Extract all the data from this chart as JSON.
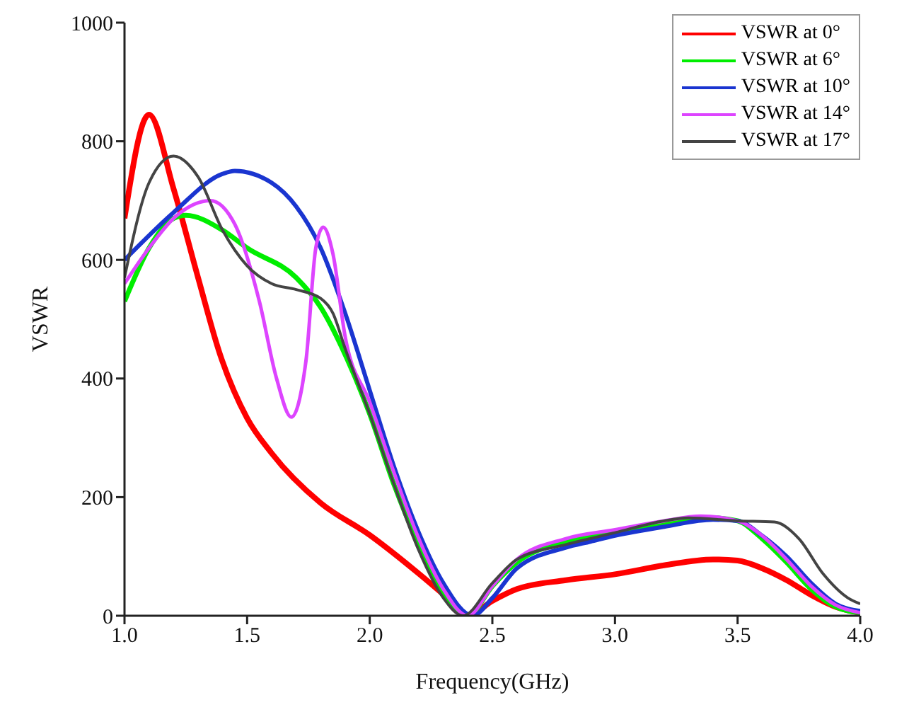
{
  "chart_data": {
    "type": "line",
    "xlabel": "Frequency(GHz)",
    "ylabel": "VSWR",
    "xlim": [
      1.0,
      4.0
    ],
    "ylim": [
      0,
      1000
    ],
    "xticks": [
      {
        "value": 1.0,
        "label": "1.0"
      },
      {
        "value": 1.5,
        "label": "1.5"
      },
      {
        "value": 2.0,
        "label": "2.0"
      },
      {
        "value": 2.5,
        "label": "2.5"
      },
      {
        "value": 3.0,
        "label": "3.0"
      },
      {
        "value": 3.5,
        "label": "3.5"
      },
      {
        "value": 4.0,
        "label": "4.0"
      }
    ],
    "yticks": [
      0,
      200,
      400,
      600,
      800,
      1000
    ],
    "grid": false,
    "legend": "top right",
    "marker": "none",
    "line_style": "solid",
    "series": [
      {
        "name": "VSWR at 0°",
        "color": "#ff0000",
        "x": [
          1.0,
          1.1,
          1.2,
          1.3,
          1.39,
          1.5,
          1.6,
          1.8,
          2.0,
          2.2,
          2.3,
          2.4,
          2.5,
          2.6,
          2.8,
          3.0,
          3.2,
          3.4,
          3.5,
          3.6,
          3.7,
          3.8,
          3.9,
          4.0
        ],
        "values": [
          670,
          845,
          720,
          570,
          440,
          333,
          274,
          190,
          136,
          71,
          36,
          0,
          25,
          45,
          60,
          70,
          85,
          95,
          93,
          80,
          60,
          35,
          15,
          5
        ]
      },
      {
        "name": "VSWR at 6°",
        "color": "#00ee00",
        "x": [
          1.0,
          1.1,
          1.2,
          1.25,
          1.4,
          1.5,
          1.7,
          1.8,
          1.9,
          2.0,
          2.1,
          2.2,
          2.3,
          2.4,
          2.5,
          2.6,
          2.8,
          3.0,
          3.2,
          3.4,
          3.5,
          3.6,
          3.7,
          3.8,
          3.9,
          4.0
        ],
        "values": [
          530,
          620,
          670,
          675,
          650,
          620,
          570,
          520,
          440,
          340,
          220,
          120,
          40,
          0,
          50,
          90,
          125,
          140,
          155,
          165,
          160,
          130,
          90,
          45,
          15,
          5
        ]
      },
      {
        "name": "VSWR at 10°",
        "color": "#1a35d0",
        "x": [
          1.0,
          1.2,
          1.4,
          1.45,
          1.6,
          1.7,
          1.8,
          1.9,
          2.0,
          2.1,
          2.2,
          2.3,
          2.42,
          2.5,
          2.6,
          2.8,
          2.9,
          3.0,
          3.2,
          3.4,
          3.5,
          3.6,
          3.7,
          3.8,
          3.9,
          4.0
        ],
        "values": [
          600,
          680,
          745,
          750,
          730,
          690,
          620,
          510,
          380,
          250,
          140,
          55,
          0,
          30,
          80,
          115,
          125,
          135,
          150,
          162,
          160,
          135,
          100,
          55,
          20,
          8
        ]
      },
      {
        "name": "VSWR at 14°",
        "color": "#dd44ff",
        "x": [
          1.0,
          1.1,
          1.2,
          1.35,
          1.45,
          1.55,
          1.62,
          1.68,
          1.74,
          1.78,
          1.81,
          1.85,
          1.9,
          2.0,
          2.1,
          2.2,
          2.3,
          2.4,
          2.5,
          2.6,
          2.8,
          3.0,
          3.2,
          3.35,
          3.5,
          3.6,
          3.7,
          3.8,
          3.9,
          4.0
        ],
        "values": [
          560,
          620,
          670,
          700,
          660,
          530,
          400,
          335,
          430,
          620,
          655,
          610,
          470,
          360,
          240,
          130,
          45,
          0,
          50,
          95,
          130,
          145,
          160,
          168,
          160,
          135,
          95,
          50,
          18,
          5
        ]
      },
      {
        "name": "VSWR at 17°",
        "color": "#444444",
        "x": [
          1.0,
          1.1,
          1.2,
          1.3,
          1.4,
          1.5,
          1.6,
          1.7,
          1.8,
          1.85,
          1.9,
          2.0,
          2.1,
          2.2,
          2.3,
          2.38,
          2.5,
          2.6,
          2.8,
          3.0,
          3.2,
          3.3,
          3.5,
          3.65,
          3.75,
          3.85,
          3.95,
          4.0
        ],
        "values": [
          570,
          730,
          775,
          740,
          650,
          590,
          560,
          550,
          535,
          510,
          450,
          340,
          220,
          110,
          30,
          0,
          55,
          95,
          120,
          140,
          160,
          165,
          160,
          158,
          130,
          70,
          30,
          20
        ]
      }
    ]
  }
}
